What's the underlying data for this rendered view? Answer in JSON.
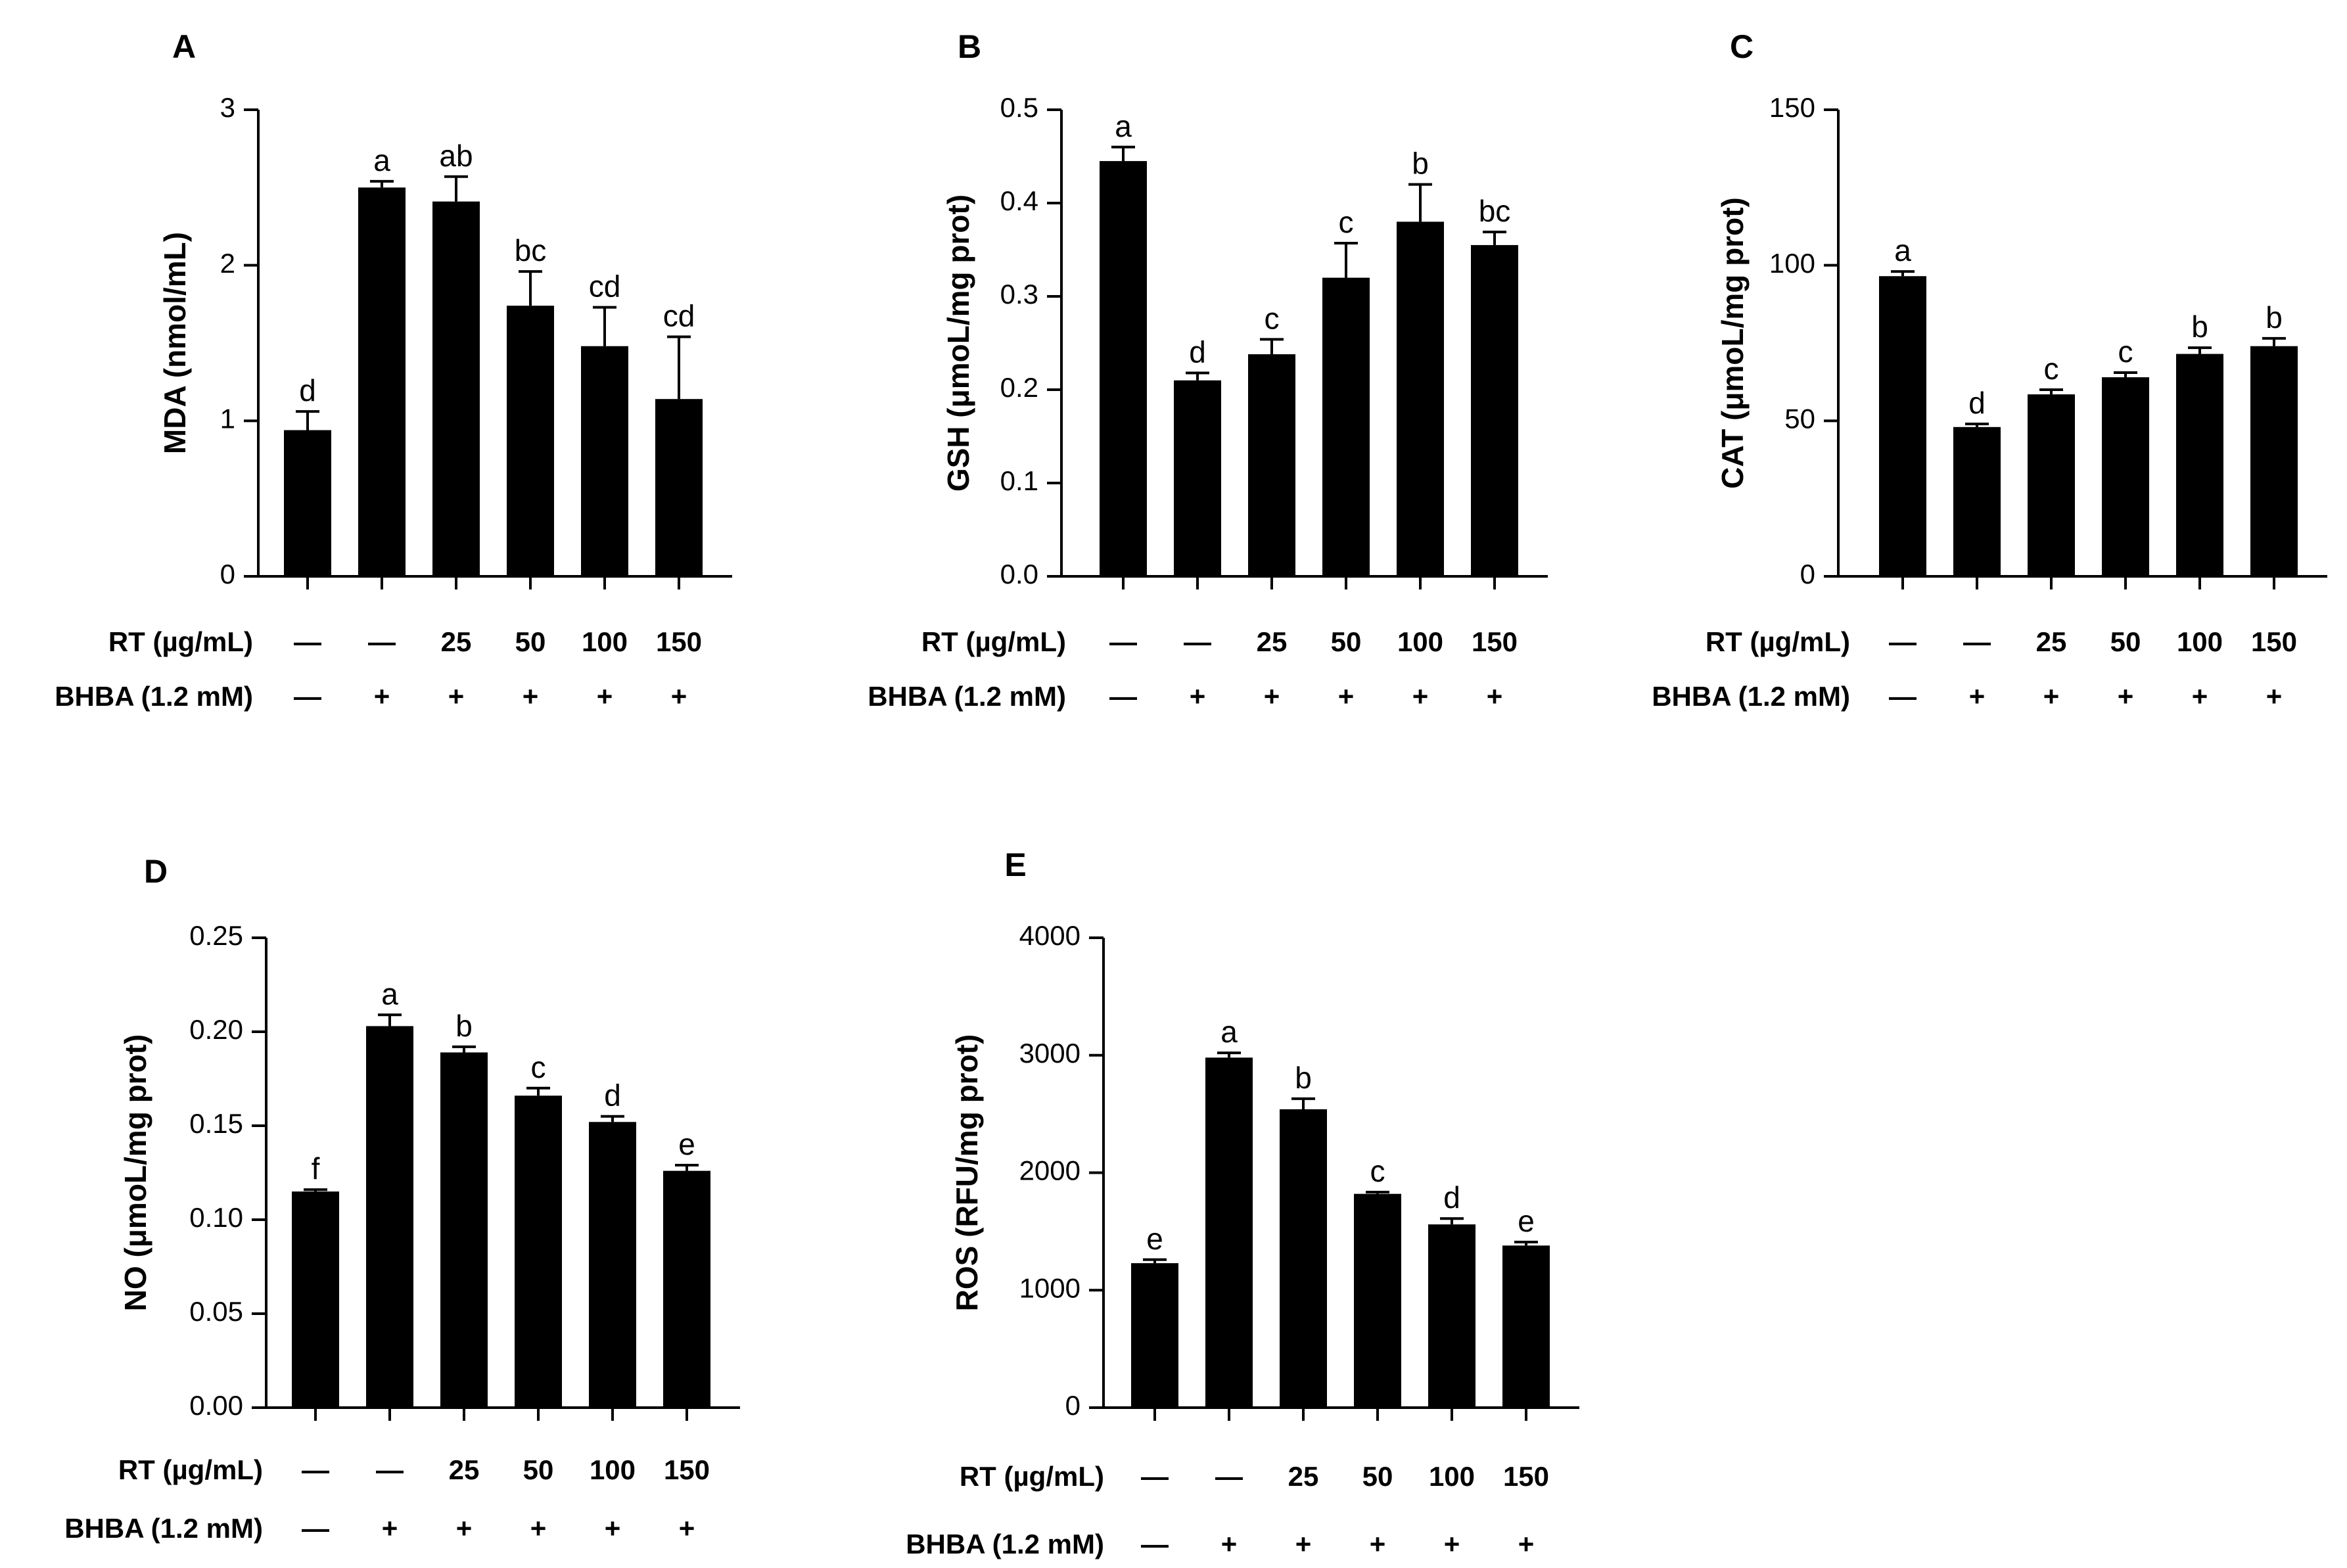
{
  "figure": {
    "row_labels": {
      "rt": "RT (µg/mL)",
      "bhba": "BHBA (1.2 mM)"
    },
    "rt_values": [
      "—",
      "—",
      "25",
      "50",
      "100",
      "150"
    ],
    "bhba_values": [
      "—",
      "+",
      "+",
      "+",
      "+",
      "+"
    ]
  },
  "colors": {
    "bar": "#000000",
    "axis": "#000000",
    "background": "#ffffff"
  },
  "chart_data": [
    {
      "panel": "A",
      "type": "bar",
      "ylabel": "MDA (nmol/mL)",
      "ylim": [
        0,
        3
      ],
      "yticks": [
        "0",
        "1",
        "2",
        "3"
      ],
      "ytick_values": [
        0,
        1,
        2,
        3
      ],
      "values": [
        0.94,
        2.5,
        2.41,
        1.74,
        1.48,
        1.14
      ],
      "errors": [
        0.12,
        0.04,
        0.16,
        0.22,
        0.25,
        0.4
      ],
      "significance": [
        "d",
        "a",
        "ab",
        "bc",
        "cd",
        "cd"
      ]
    },
    {
      "panel": "B",
      "type": "bar",
      "ylabel": "GSH (μmoL/mg prot)",
      "ylim": [
        0,
        0.5
      ],
      "yticks": [
        "0.0",
        "0.1",
        "0.2",
        "0.3",
        "0.4",
        "0.5"
      ],
      "ytick_values": [
        0,
        0.1,
        0.2,
        0.3,
        0.4,
        0.5
      ],
      "values": [
        0.445,
        0.21,
        0.238,
        0.32,
        0.38,
        0.355
      ],
      "errors": [
        0.015,
        0.008,
        0.016,
        0.037,
        0.04,
        0.014
      ],
      "significance": [
        "a",
        "d",
        "c",
        "c",
        "b",
        "bc"
      ]
    },
    {
      "panel": "C",
      "type": "bar",
      "ylabel": "CAT (μmoL/mg prot)",
      "ylim": [
        0,
        150
      ],
      "yticks": [
        "0",
        "50",
        "100",
        "150"
      ],
      "ytick_values": [
        0,
        50,
        100,
        150
      ],
      "values": [
        96.5,
        48,
        58.5,
        64,
        71.5,
        74
      ],
      "errors": [
        1.5,
        1,
        1.5,
        1.5,
        2,
        2.5
      ],
      "significance": [
        "a",
        "d",
        "c",
        "c",
        "b",
        "b"
      ]
    },
    {
      "panel": "D",
      "type": "bar",
      "ylabel": "NO (μmoL/mg prot)",
      "ylim": [
        0,
        0.25
      ],
      "yticks": [
        "0.00",
        "0.05",
        "0.10",
        "0.15",
        "0.20",
        "0.25"
      ],
      "ytick_values": [
        0,
        0.05,
        0.1,
        0.15,
        0.2,
        0.25
      ],
      "values": [
        0.115,
        0.203,
        0.189,
        0.166,
        0.152,
        0.126
      ],
      "errors": [
        0.001,
        0.006,
        0.003,
        0.004,
        0.003,
        0.003
      ],
      "significance": [
        "f",
        "a",
        "b",
        "c",
        "d",
        "e"
      ]
    },
    {
      "panel": "E",
      "type": "bar",
      "ylabel": "ROS  (RFU/mg prot)",
      "ylim": [
        0,
        4000
      ],
      "yticks": [
        "0",
        "1000",
        "2000",
        "3000",
        "4000"
      ],
      "ytick_values": [
        0,
        1000,
        2000,
        3000,
        4000
      ],
      "values": [
        1230,
        2980,
        2540,
        1820,
        1560,
        1380
      ],
      "errors": [
        30,
        40,
        90,
        15,
        50,
        30
      ],
      "significance": [
        "e",
        "a",
        "b",
        "c",
        "d",
        "e"
      ]
    }
  ]
}
